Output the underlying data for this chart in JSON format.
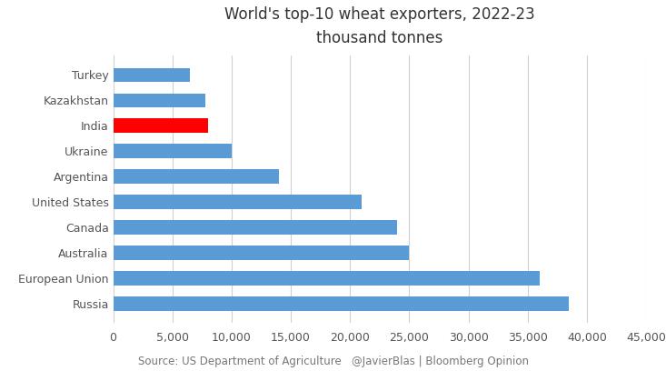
{
  "title_line1": "World's top-10 wheat exporters, 2022-23",
  "title_line2": "thousand tonnes",
  "countries": [
    "Russia",
    "European Union",
    "Australia",
    "Canada",
    "United States",
    "Argentina",
    "Ukraine",
    "India",
    "Kazakhstan",
    "Turkey"
  ],
  "values": [
    38500,
    36000,
    25000,
    24000,
    21000,
    14000,
    10000,
    8000,
    7800,
    6500
  ],
  "bar_colors": [
    "#5b9bd5",
    "#5b9bd5",
    "#5b9bd5",
    "#5b9bd5",
    "#5b9bd5",
    "#5b9bd5",
    "#5b9bd5",
    "#ff0000",
    "#5b9bd5",
    "#5b9bd5"
  ],
  "xlim": [
    0,
    45000
  ],
  "xticks": [
    0,
    5000,
    10000,
    15000,
    20000,
    25000,
    30000,
    35000,
    40000,
    45000
  ],
  "source_text": "Source: US Department of Agriculture   @JavierBlas | Bloomberg Opinion",
  "background_color": "#ffffff",
  "grid_color": "#d0d0d0",
  "title_fontsize": 12,
  "tick_fontsize": 9,
  "source_fontsize": 8.5,
  "bar_height": 0.55
}
